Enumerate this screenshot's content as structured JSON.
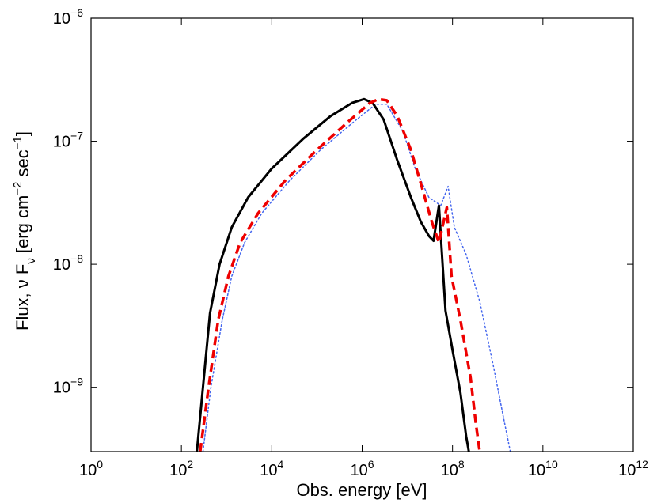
{
  "chart_data": {
    "type": "line",
    "title": "",
    "xscale": "log",
    "yscale": "log",
    "xlim": [
      1,
      1000000000000.0
    ],
    "ylim": [
      3e-10,
      1e-06
    ],
    "xlabel": "Obs. energy [eV]",
    "ylabel": {
      "main": "Flux, ν F",
      "sub_nu": "ν",
      "unit_open": " [erg cm",
      "exp1": "−2",
      "unit_mid": " sec",
      "exp2": "−1",
      "unit_close": "]"
    },
    "x_ticks": [
      {
        "base": "10",
        "exp": "0",
        "value": 1
      },
      {
        "base": "10",
        "exp": "2",
        "value": 100
      },
      {
        "base": "10",
        "exp": "4",
        "value": 10000.0
      },
      {
        "base": "10",
        "exp": "6",
        "value": 1000000.0
      },
      {
        "base": "10",
        "exp": "8",
        "value": 100000000.0
      },
      {
        "base": "10",
        "exp": "10",
        "value": 10000000000.0
      },
      {
        "base": "10",
        "exp": "12",
        "value": 1000000000000.0
      }
    ],
    "y_ticks": [
      {
        "base": "10",
        "exp": "−9",
        "value": 1e-09
      },
      {
        "base": "10",
        "exp": "−8",
        "value": 1e-08
      },
      {
        "base": "10",
        "exp": "−7",
        "value": 1e-07
      },
      {
        "base": "10",
        "exp": "−6",
        "value": 1e-06
      }
    ],
    "series": [
      {
        "name": "solid",
        "color": "#000000",
        "style": "solid",
        "points": [
          [
            220,
            3e-10
          ],
          [
            300,
            1e-09
          ],
          [
            430,
            4e-09
          ],
          [
            700,
            1e-08
          ],
          [
            1300,
            2e-08
          ],
          [
            3000,
            3.5e-08
          ],
          [
            10000,
            6e-08
          ],
          [
            50000,
            1.05e-07
          ],
          [
            200000,
            1.6e-07
          ],
          [
            600000,
            2.05e-07
          ],
          [
            1100000,
            2.2e-07
          ],
          [
            1700000,
            2.05e-07
          ],
          [
            3000000,
            1.5e-07
          ],
          [
            6000000,
            7e-08
          ],
          [
            12000000,
            3.5e-08
          ],
          [
            20000000,
            2.2e-08
          ],
          [
            30000000,
            1.7e-08
          ],
          [
            38000000,
            1.55e-08
          ],
          [
            50000000,
            3e-08
          ],
          [
            70000000,
            4.2e-09
          ],
          [
            100000000,
            2e-09
          ],
          [
            150000000,
            9e-10
          ],
          [
            200000000,
            4e-10
          ],
          [
            230000000,
            3e-10
          ]
        ]
      },
      {
        "name": "dashed",
        "color": "#ee0000",
        "style": "dashed",
        "points": [
          [
            260,
            3e-10
          ],
          [
            400,
            1e-09
          ],
          [
            650,
            3.5e-09
          ],
          [
            1100,
            8e-09
          ],
          [
            2000,
            1.5e-08
          ],
          [
            5000,
            2.6e-08
          ],
          [
            20000,
            4.8e-08
          ],
          [
            100000,
            8.5e-08
          ],
          [
            500000,
            1.45e-07
          ],
          [
            1500000,
            2.05e-07
          ],
          [
            2300000,
            2.2e-07
          ],
          [
            3500000,
            2.15e-07
          ],
          [
            6000000,
            1.6e-07
          ],
          [
            12000000,
            8.5e-08
          ],
          [
            20000000,
            4.5e-08
          ],
          [
            35000000,
            2.2e-08
          ],
          [
            50000000,
            1.5e-08
          ],
          [
            75000000,
            2.9e-08
          ],
          [
            95000000,
            8e-09
          ],
          [
            150000000,
            3.5e-09
          ],
          [
            250000000,
            1.2e-09
          ],
          [
            330000000,
            5e-10
          ],
          [
            400000000,
            3e-10
          ]
        ]
      },
      {
        "name": "dotted",
        "color": "#4466ee",
        "style": "dotted",
        "points": [
          [
            300,
            3e-10
          ],
          [
            450,
            1e-09
          ],
          [
            800,
            3.5e-09
          ],
          [
            1300,
            8e-09
          ],
          [
            2500,
            1.5e-08
          ],
          [
            6000,
            2.6e-08
          ],
          [
            25000,
            4.8e-08
          ],
          [
            120000,
            8.5e-08
          ],
          [
            600000,
            1.4e-07
          ],
          [
            2000000,
            2e-07
          ],
          [
            3500000,
            2e-07
          ],
          [
            8000000,
            1.2e-07
          ],
          [
            15000000,
            6e-08
          ],
          [
            30000000,
            3.5e-08
          ],
          [
            55000000,
            3e-08
          ],
          [
            80000000,
            4.3e-08
          ],
          [
            110000000,
            2e-08
          ],
          [
            200000000,
            1.2e-08
          ],
          [
            400000000,
            5e-09
          ],
          [
            800000000,
            1.5e-09
          ],
          [
            1300000000,
            6e-10
          ],
          [
            1900000000,
            3e-10
          ]
        ]
      }
    ]
  }
}
